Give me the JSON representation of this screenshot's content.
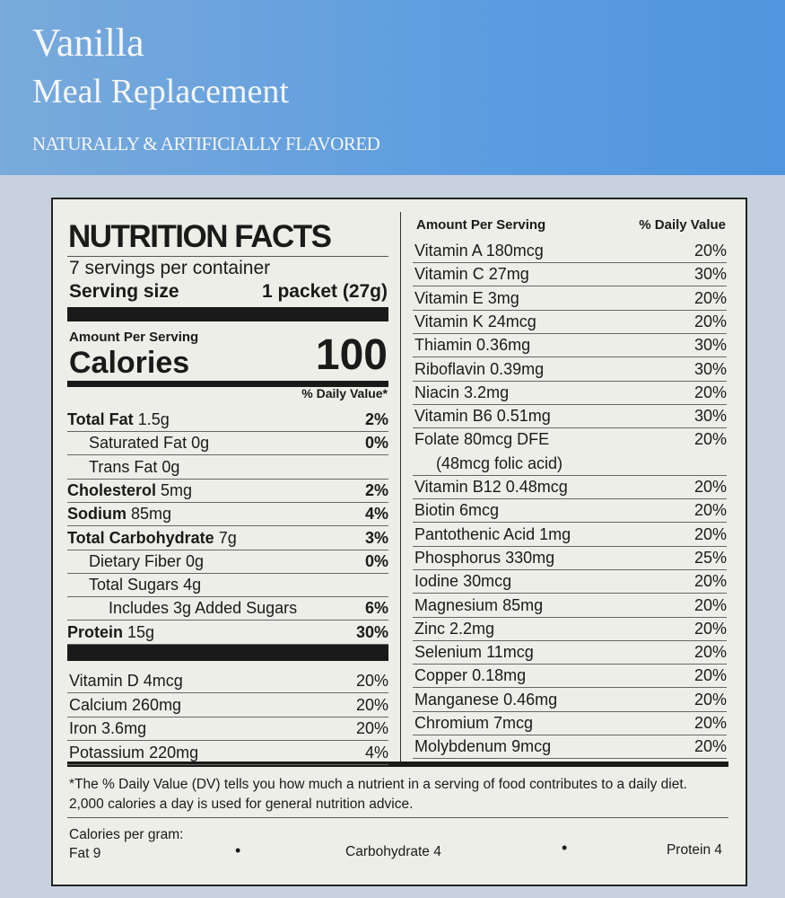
{
  "header": {
    "title": "Vanilla",
    "subtitle": "Meal Replacement",
    "flavor": "NATURALLY & ARTIFICIALLY FLAVORED"
  },
  "label": {
    "heading": "NUTRITION FACTS",
    "servings": "7 servings per container",
    "serving_size_label": "Serving size",
    "serving_size": "1 packet (27g)",
    "amount_per_serving": "Amount Per Serving",
    "calories_label": "Calories",
    "calories": "100",
    "dv_header": "% Daily Value*",
    "nutrients": [
      {
        "name": "Total Fat",
        "amount": "1.5g",
        "dv": "2%"
      },
      {
        "name": "Saturated Fat",
        "amount": "0g",
        "dv": "0%"
      },
      {
        "name": "Trans Fat",
        "amount": "0g"
      },
      {
        "name": "Cholesterol",
        "amount": "5mg",
        "dv": "2%"
      },
      {
        "name": "Sodium",
        "amount": "85mg",
        "dv": "4%"
      },
      {
        "name": "Total Carbohydrate",
        "amount": "7g",
        "dv": "3%"
      },
      {
        "name": "Dietary Fiber",
        "amount": "0g",
        "dv": "0%"
      },
      {
        "name": "Total Sugars",
        "amount": "4g"
      },
      {
        "name": "Includes 3g Added Sugars",
        "dv": "6%"
      },
      {
        "name": "Protein",
        "amount": "15g",
        "dv": "30%"
      }
    ],
    "vitamins": [
      {
        "name": "Vitamin D",
        "amount": "4mcg",
        "dv": "20%"
      },
      {
        "name": "Calcium",
        "amount": "260mg",
        "dv": "20%"
      },
      {
        "name": "Iron",
        "amount": "3.6mg",
        "dv": "20%"
      },
      {
        "name": "Potassium",
        "amount": "220mg",
        "dv": "4%"
      }
    ],
    "right_header": {
      "amount": "Amount Per Serving",
      "dv": "% Daily Value"
    },
    "right_rows": [
      {
        "name": "Vitamin A",
        "amount": "180mcg",
        "dv": "20%"
      },
      {
        "name": "Vitamin C",
        "amount": "27mg",
        "dv": "30%"
      },
      {
        "name": "Vitamin E",
        "amount": "3mg",
        "dv": "20%"
      },
      {
        "name": "Vitamin K",
        "amount": "24mcg",
        "dv": "20%"
      },
      {
        "name": "Thiamin",
        "amount": "0.36mg",
        "dv": "30%"
      },
      {
        "name": "Riboflavin",
        "amount": "0.39mg",
        "dv": "30%"
      },
      {
        "name": "Niacin",
        "amount": "3.2mg",
        "dv": "20%"
      },
      {
        "name": "Vitamin B6",
        "amount": "0.51mg",
        "dv": "30%"
      },
      {
        "name": "Folate",
        "amount": "80mcg DFE",
        "dv": "20%",
        "note": "(48mcg folic acid)"
      },
      {
        "name": "Vitamin B12",
        "amount": "0.48mcg",
        "dv": "20%"
      },
      {
        "name": "Biotin",
        "amount": "6mcg",
        "dv": "20%"
      },
      {
        "name": "Pantothenic Acid",
        "amount": "1mg",
        "dv": "20%"
      },
      {
        "name": "Phosphorus",
        "amount": "330mg",
        "dv": "25%"
      },
      {
        "name": "Iodine",
        "amount": "30mcg",
        "dv": "20%"
      },
      {
        "name": "Magnesium",
        "amount": "85mg",
        "dv": "20%"
      },
      {
        "name": "Zinc",
        "amount": "2.2mg",
        "dv": "20%"
      },
      {
        "name": "Selenium",
        "amount": "11mcg",
        "dv": "20%"
      },
      {
        "name": "Copper",
        "amount": "0.18mg",
        "dv": "20%"
      },
      {
        "name": "Manganese",
        "amount": "0.46mg",
        "dv": "20%"
      },
      {
        "name": "Chromium",
        "amount": "7mcg",
        "dv": "20%"
      },
      {
        "name": "Molybdenum",
        "amount": "9mcg",
        "dv": "20%"
      }
    ],
    "footnote": "*The % Daily Value (DV) tells you how much a nutrient in a serving of food contributes to a daily diet. 2,000 calories a day is used for general nutrition advice.",
    "calories_per_gram": "Calories per gram:",
    "per_gram": [
      "Fat 9",
      "Carbohydrate 4",
      "Protein 4"
    ]
  }
}
